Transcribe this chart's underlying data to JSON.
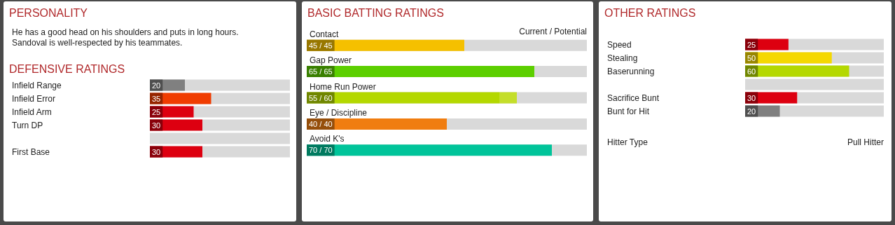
{
  "chart_data": [
    {
      "type": "other",
      "title": "PERSONALITY",
      "annotations": [
        "He has a good head on his shoulders and puts in long hours.",
        "Sandoval is well-respected by his teammates."
      ]
    },
    {
      "type": "bar",
      "orientation": "horizontal",
      "title": "DEFENSIVE RATINGS",
      "categories": [
        "Infield Range",
        "Infield Error",
        "Infield Arm",
        "Turn DP",
        null,
        "First Base"
      ],
      "values": [
        20,
        35,
        25,
        30,
        null,
        30
      ],
      "colors": [
        "#808080",
        "#f03c00",
        "#dd0010",
        "#dd0010",
        null,
        "#dd0010"
      ],
      "xlim": [
        0,
        80
      ],
      "tick_labels": "y",
      "data_labels": true
    },
    {
      "type": "bar",
      "orientation": "horizontal",
      "title": "BASIC BATTING RATINGS",
      "categories": [
        "Contact",
        "Gap Power",
        "Home Run Power",
        "Eye / Discipline",
        "Avoid K's"
      ],
      "stacked": true,
      "xlim": [
        0,
        80
      ],
      "tick_labels": "y",
      "annotations": [
        "Current / Potential"
      ],
      "series": [
        {
          "values": [
            45,
            65,
            55,
            40,
            70
          ],
          "colors": [
            "#f5c000",
            "#5ccf00",
            "#b4d800",
            "#f07d10",
            "#00c49a"
          ],
          "value_labels": [
            "45 / 45",
            "65 / 65",
            "55 / 60",
            "40 / 40",
            "70 / 70"
          ]
        },
        {
          "values": [
            0,
            0,
            5,
            0,
            0
          ],
          "colors": [
            "#f5c000",
            "#5ccf00",
            "#c4de2a",
            "#f07d10",
            "#00c49a"
          ]
        }
      ]
    },
    {
      "type": "bar",
      "orientation": "horizontal",
      "title": "OTHER RATINGS",
      "categories": [
        "Speed",
        "Stealing",
        "Baserunning",
        null,
        "Sacrifice Bunt",
        "Bunt for Hit"
      ],
      "values": [
        25,
        50,
        60,
        null,
        30,
        20
      ],
      "colors": [
        "#dd0010",
        "#f5d800",
        "#b4d800",
        null,
        "#dd0010",
        "#808080"
      ],
      "xlim": [
        0,
        80
      ],
      "tick_labels": "y",
      "data_labels": true,
      "annotations": [
        "Hitter Type",
        "Pull Hitter"
      ]
    }
  ]
}
